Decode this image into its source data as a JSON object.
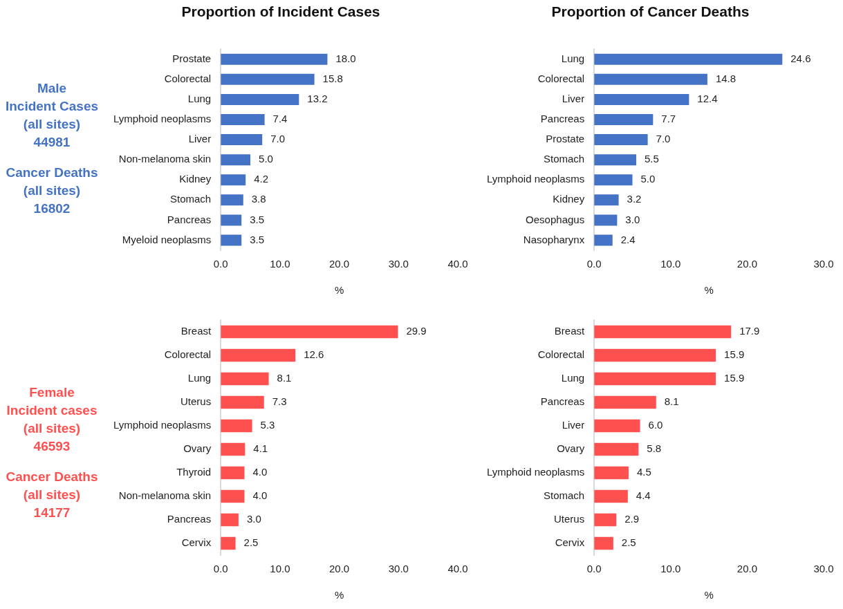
{
  "chart_data": [
    {
      "type": "bar",
      "orientation": "horizontal",
      "title": "Proportion of Incident Cases",
      "xlabel": "%",
      "categories": [
        "Prostate",
        "Colorectal",
        "Lung",
        "Lymphoid neoplasms",
        "Liver",
        "Non-melanoma skin",
        "Kidney",
        "Stomach",
        "Pancreas",
        "Myeloid neoplasms"
      ],
      "values": [
        18.0,
        15.8,
        13.2,
        7.4,
        7.0,
        5.0,
        4.2,
        3.8,
        3.5,
        3.5
      ],
      "value_labels": [
        "18.0",
        "15.8",
        "13.2",
        "7.4",
        "7.0",
        "5.0",
        "4.2",
        "3.8",
        "3.5",
        "3.5"
      ],
      "color": "#4472c4",
      "xlim": [
        0,
        40
      ],
      "xticks": [
        {
          "value": 0,
          "label": "0.0"
        },
        {
          "value": 10,
          "label": "10.0"
        },
        {
          "value": 20,
          "label": "20.0"
        },
        {
          "value": 30,
          "label": "30.0"
        },
        {
          "value": 40,
          "label": "40.0"
        }
      ],
      "grid": false,
      "legend": false,
      "annotations": [
        "Male\nIncident Cases\n(all sites)\n44981",
        "Cancer Deaths\n(all sites)\n16802"
      ]
    },
    {
      "type": "bar",
      "orientation": "horizontal",
      "title": "Proportion of Cancer Deaths",
      "xlabel": "%",
      "categories": [
        "Lung",
        "Colorectal",
        "Liver",
        "Pancreas",
        "Prostate",
        "Stomach",
        "Lymphoid neoplasms",
        "Kidney",
        "Oesophagus",
        "Nasopharynx"
      ],
      "values": [
        24.6,
        14.8,
        12.4,
        7.7,
        7.0,
        5.5,
        5.0,
        3.2,
        3.0,
        2.4
      ],
      "value_labels": [
        "24.6",
        "14.8",
        "12.4",
        "7.7",
        "7.0",
        "5.5",
        "5.0",
        "3.2",
        "3.0",
        "2.4"
      ],
      "color": "#4472c4",
      "xlim": [
        0,
        30
      ],
      "xticks": [
        {
          "value": 0,
          "label": "0.0"
        },
        {
          "value": 10,
          "label": "10.0"
        },
        {
          "value": 20,
          "label": "20.0"
        },
        {
          "value": 30,
          "label": "30.0"
        }
      ],
      "grid": false,
      "legend": false
    },
    {
      "type": "bar",
      "orientation": "horizontal",
      "xlabel": "%",
      "categories": [
        "Breast",
        "Colorectal",
        "Lung",
        "Uterus",
        "Lymphoid neoplasms",
        "Ovary",
        "Thyroid",
        "Non-melanoma skin",
        "Pancreas",
        "Cervix"
      ],
      "values": [
        29.9,
        12.6,
        8.1,
        7.3,
        5.3,
        4.1,
        4.0,
        4.0,
        3.0,
        2.5
      ],
      "value_labels": [
        "29.9",
        "12.6",
        "8.1",
        "7.3",
        "5.3",
        "4.1",
        "4.0",
        "4.0",
        "3.0",
        "2.5"
      ],
      "color": "#ff5050",
      "xlim": [
        0,
        40
      ],
      "xticks": [
        {
          "value": 0,
          "label": "0.0"
        },
        {
          "value": 10,
          "label": "10.0"
        },
        {
          "value": 20,
          "label": "20.0"
        },
        {
          "value": 30,
          "label": "30.0"
        },
        {
          "value": 40,
          "label": "40.0"
        }
      ],
      "grid": false,
      "legend": false,
      "annotations": [
        "Female\nIncident cases\n(all sites)\n46593",
        "Cancer Deaths\n(all sites)\n14177"
      ]
    },
    {
      "type": "bar",
      "orientation": "horizontal",
      "xlabel": "%",
      "categories": [
        "Breast",
        "Colorectal",
        "Lung",
        "Pancreas",
        "Liver",
        "Ovary",
        "Lymphoid neoplasms",
        "Stomach",
        "Uterus",
        "Cervix"
      ],
      "values": [
        17.9,
        15.9,
        15.9,
        8.1,
        6.0,
        5.8,
        4.5,
        4.4,
        2.9,
        2.5
      ],
      "value_labels": [
        "17.9",
        "15.9",
        "15.9",
        "8.1",
        "6.0",
        "5.8",
        "4.5",
        "4.4",
        "2.9",
        "2.5"
      ],
      "color": "#ff5050",
      "xlim": [
        0,
        30
      ],
      "xticks": [
        {
          "value": 0,
          "label": "0.0"
        },
        {
          "value": 10,
          "label": "10.0"
        },
        {
          "value": 20,
          "label": "20.0"
        },
        {
          "value": 30,
          "label": "30.0"
        }
      ],
      "grid": false,
      "legend": false
    }
  ]
}
